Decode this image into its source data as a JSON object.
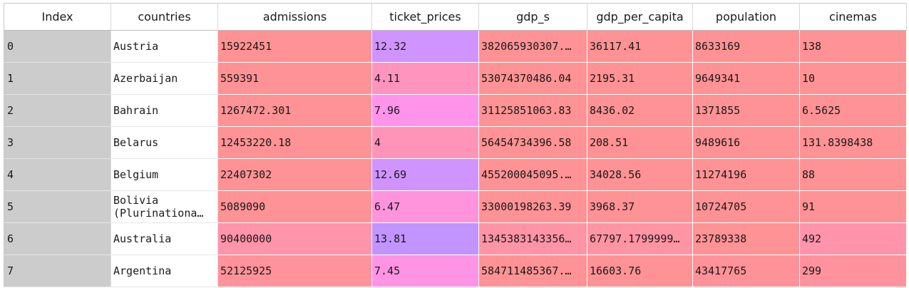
{
  "columns": [
    "Index",
    "countries",
    "admissions",
    "ticket_prices",
    "gdp_s",
    "gdp_per_capita",
    "population",
    "cinemas"
  ],
  "rows": [
    {
      "index": "0",
      "countries": "Austria",
      "admissions": "15922451",
      "ticket_prices": "12.32",
      "gdp_s": "382065930307.…",
      "gdp_per_capita": "36117.41",
      "population": "8633169",
      "cinemas": "138",
      "colors": {
        "admissions": "#ff9294",
        "ticket_prices": "#cf94ff",
        "gdp_s": "#ff9294",
        "gdp_per_capita": "#ff9294",
        "population": "#ff9294",
        "cinemas": "#ff9294"
      }
    },
    {
      "index": "1",
      "countries": "Azerbaijan",
      "admissions": "559391",
      "ticket_prices": "4.11",
      "gdp_s": "53074370486.04",
      "gdp_per_capita": "2195.31",
      "population": "9649341",
      "cinemas": "10",
      "colors": {
        "admissions": "#ff9294",
        "ticket_prices": "#ff94be",
        "gdp_s": "#ff9294",
        "gdp_per_capita": "#ff9294",
        "population": "#ff9294",
        "cinemas": "#ff9294"
      }
    },
    {
      "index": "2",
      "countries": "Bahrain",
      "admissions": "1267472.301",
      "ticket_prices": "7.96",
      "gdp_s": "31125851063.83",
      "gdp_per_capita": "8436.02",
      "population": "1371855",
      "cinemas": "6.5625",
      "colors": {
        "admissions": "#ff9294",
        "ticket_prices": "#ff94ea",
        "gdp_s": "#ff9294",
        "gdp_per_capita": "#ff9294",
        "population": "#ff9294",
        "cinemas": "#ff9294"
      }
    },
    {
      "index": "3",
      "countries": "Belarus",
      "admissions": "12453220.18",
      "ticket_prices": "4",
      "gdp_s": "56454734396.58",
      "gdp_per_capita": "208.51",
      "population": "9489616",
      "cinemas": "131.8398438",
      "colors": {
        "admissions": "#ff9294",
        "ticket_prices": "#ff94b8",
        "gdp_s": "#ff9294",
        "gdp_per_capita": "#ff9294",
        "population": "#ff9294",
        "cinemas": "#ff9294"
      }
    },
    {
      "index": "4",
      "countries": "Belgium",
      "admissions": "22407302",
      "ticket_prices": "12.69",
      "gdp_s": "455200045095.…",
      "gdp_per_capita": "34028.56",
      "population": "11274196",
      "cinemas": "88",
      "colors": {
        "admissions": "#ff9294",
        "ticket_prices": "#cf94ff",
        "gdp_s": "#ff9294",
        "gdp_per_capita": "#ff9294",
        "population": "#ff9294",
        "cinemas": "#ff9294"
      }
    },
    {
      "index": "5",
      "countries": "Bolivia\n(Plurinationa…",
      "admissions": "5089090",
      "ticket_prices": "6.47",
      "gdp_s": "33000198263.39",
      "gdp_per_capita": "3968.37",
      "population": "10724705",
      "cinemas": "91",
      "colors": {
        "admissions": "#ff9294",
        "ticket_prices": "#ff94dc",
        "gdp_s": "#ff9294",
        "gdp_per_capita": "#ff9294",
        "population": "#ff9294",
        "cinemas": "#ff9294"
      }
    },
    {
      "index": "6",
      "countries": "Australia",
      "admissions": "90400000",
      "ticket_prices": "13.81",
      "gdp_s": "1345383143356…",
      "gdp_per_capita": "67797.1799999…",
      "population": "23789338",
      "cinemas": "492",
      "colors": {
        "admissions": "#ff94aa",
        "ticket_prices": "#c194ff",
        "gdp_s": "#ff94a6",
        "gdp_per_capita": "#ff94a4",
        "population": "#ff9294",
        "cinemas": "#ff94ac"
      }
    },
    {
      "index": "7",
      "countries": "Argentina",
      "admissions": "52125925",
      "ticket_prices": "7.45",
      "gdp_s": "584711485367.…",
      "gdp_per_capita": "16603.76",
      "population": "43417765",
      "cinemas": "299",
      "colors": {
        "admissions": "#ff929a",
        "ticket_prices": "#ff94e4",
        "gdp_s": "#ff9294",
        "gdp_per_capita": "#ff9294",
        "population": "#ff9298",
        "cinemas": "#ff929c"
      }
    }
  ]
}
